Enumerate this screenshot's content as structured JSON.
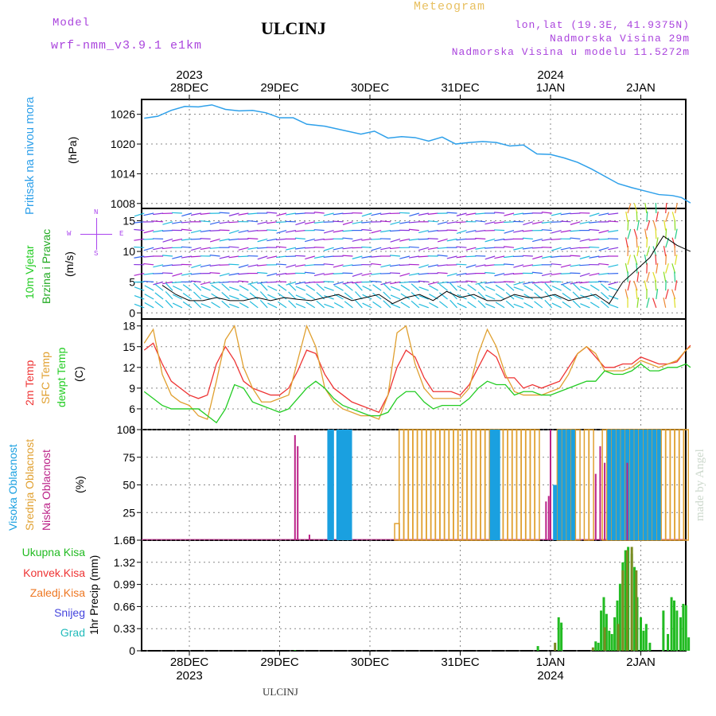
{
  "header": {
    "model_label": "Model",
    "model_name": "wrf-nmm_v3.9.1 e1km",
    "location": "ULCINJ",
    "product": "Meteogram",
    "coords": "lon,lat (19.3E, 41.9375N)",
    "elevation": "Nadmorska Visina 29m",
    "model_elevation": "Nadmorska Visina u modelu 11.5272m",
    "credit": "made by Angel",
    "footer_location": "ULCINJ"
  },
  "time_axis": {
    "top_years": [
      {
        "day_index": 0,
        "label": "2023"
      },
      {
        "day_index": 4,
        "label": "2024"
      }
    ],
    "top_days": [
      "28DEC",
      "29DEC",
      "30DEC",
      "31DEC",
      "1JAN",
      "2JAN"
    ],
    "bottom_days": [
      "28DEC",
      "29DEC",
      "30DEC",
      "31DEC",
      "1JAN",
      "2JAN"
    ],
    "bottom_years": [
      {
        "day_index": 0,
        "label": "2023"
      },
      {
        "day_index": 4,
        "label": "2024"
      }
    ]
  },
  "colors": {
    "pressure": "#2ea0ea",
    "wind_speed_label": "#22cc22",
    "wind_dir_label": "#22aa22",
    "wind_dir_legend": "#aa44ee",
    "temp2m": "#ee3333",
    "sfc_temp": "#e0a030",
    "dewpoint": "#22cc22",
    "cloud_high": "#1aa0e0",
    "cloud_mid": "#e0a030",
    "cloud_low": "#bb2288",
    "precip_total": "#22bb22",
    "precip_conv": "#ee3333",
    "precip_strat": "#ee7722",
    "precip_snow": "#4444dd",
    "precip_graupel": "#22bbbb"
  },
  "chart_data": [
    {
      "type": "line",
      "title": "",
      "labels": [
        "Pritisak na nivou mora",
        "(hPa)"
      ],
      "y_ticks": [
        "1026",
        "1020",
        "1014",
        "1008"
      ],
      "ylim": [
        1007,
        1029
      ],
      "x": [
        -0.5,
        -0.35,
        -0.2,
        -0.05,
        0.1,
        0.25,
        0.4,
        0.55,
        0.7,
        0.85,
        1.0,
        1.15,
        1.3,
        1.5,
        1.7,
        1.9,
        2.05,
        2.2,
        2.35,
        2.5,
        2.65,
        2.8,
        2.95,
        3.1,
        3.25,
        3.4,
        3.55,
        3.7,
        3.85,
        4.0,
        4.15,
        4.3,
        4.45,
        4.6,
        4.75,
        4.9,
        5.05,
        5.2,
        5.35,
        5.45,
        5.55
      ],
      "values": [
        1025.2,
        1025.6,
        1026.8,
        1027.6,
        1027.5,
        1027.9,
        1027.0,
        1026.7,
        1026.8,
        1026.3,
        1025.3,
        1025.3,
        1024.0,
        1023.6,
        1022.8,
        1022.0,
        1022.6,
        1021.2,
        1021.5,
        1021.3,
        1020.6,
        1021.4,
        1020.0,
        1020.3,
        1020.5,
        1020.3,
        1019.6,
        1019.8,
        1018.0,
        1017.9,
        1017.2,
        1016.3,
        1015.0,
        1013.5,
        1012.0,
        1011.2,
        1010.5,
        1009.8,
        1009.6,
        1009.2,
        1008.1
      ]
    },
    {
      "type": "line",
      "title": "",
      "labels": [
        "10m Vjetar",
        "Brzina i Pravac",
        "(m/s)"
      ],
      "direction_legend": [
        "N",
        "W",
        "E",
        "S"
      ],
      "y_ticks": [
        "15",
        "10",
        "5",
        "0"
      ],
      "ylim": [
        -1,
        17
      ],
      "series": [
        {
          "x": [
            -0.3,
            -0.15,
            0.0,
            0.15,
            0.3,
            0.45,
            0.6,
            0.75,
            0.9,
            1.05,
            1.2,
            1.35,
            1.5,
            1.65,
            1.8,
            1.95,
            2.1,
            2.25,
            2.4,
            2.55,
            2.7,
            2.85,
            3.0,
            3.15,
            3.3,
            3.45,
            3.6,
            3.75,
            3.9,
            4.05,
            4.2,
            4.35,
            4.5,
            4.65,
            4.8,
            4.95,
            5.1,
            5.25,
            5.4,
            5.55
          ],
          "values": [
            4.5,
            3.0,
            2.0,
            2.0,
            2.5,
            2.0,
            2.0,
            2.5,
            2.0,
            2.5,
            2.2,
            2.0,
            2.5,
            3.0,
            2.0,
            2.5,
            3.0,
            1.5,
            2.5,
            3.0,
            2.0,
            3.5,
            2.5,
            3.0,
            2.0,
            2.0,
            3.0,
            2.5,
            2.5,
            3.0,
            2.0,
            2.5,
            3.0,
            1.5,
            5.0,
            7.0,
            9.0,
            12.5,
            11.0,
            10.0
          ]
        }
      ]
    },
    {
      "type": "line",
      "title": "",
      "labels": [
        "2m Temp",
        "SFC Temp",
        "dewpt Temp",
        "(C)"
      ],
      "y_ticks": [
        "18",
        "15",
        "12",
        "9",
        "6",
        "3"
      ],
      "ylim": [
        3,
        19
      ],
      "x": [
        -0.5,
        -0.4,
        -0.3,
        -0.2,
        -0.1,
        0.0,
        0.1,
        0.2,
        0.3,
        0.4,
        0.5,
        0.6,
        0.7,
        0.8,
        0.9,
        1.0,
        1.1,
        1.2,
        1.3,
        1.4,
        1.5,
        1.6,
        1.7,
        1.8,
        1.9,
        2.0,
        2.1,
        2.2,
        2.3,
        2.4,
        2.5,
        2.6,
        2.7,
        2.8,
        2.9,
        3.0,
        3.1,
        3.2,
        3.3,
        3.4,
        3.5,
        3.6,
        3.7,
        3.8,
        3.9,
        4.0,
        4.1,
        4.2,
        4.3,
        4.4,
        4.5,
        4.6,
        4.7,
        4.8,
        4.9,
        5.0,
        5.1,
        5.2,
        5.3,
        5.4,
        5.5,
        5.55
      ],
      "series": [
        {
          "name": "2m Temp",
          "values": [
            14.5,
            15.5,
            12.5,
            10.0,
            9.0,
            8.0,
            7.5,
            8.0,
            12.5,
            15.0,
            13.0,
            10.0,
            9.0,
            8.5,
            8.0,
            8.0,
            9.0,
            11.5,
            14.5,
            14.0,
            11.0,
            9.0,
            8.0,
            7.0,
            6.5,
            6.0,
            5.5,
            8.0,
            12.0,
            14.5,
            13.5,
            10.5,
            8.5,
            8.5,
            8.5,
            8.0,
            9.5,
            12.0,
            14.5,
            13.5,
            10.5,
            10.5,
            9.0,
            9.5,
            9.0,
            9.5,
            10.0,
            12.0,
            14.0,
            15.0,
            13.5,
            12.0,
            12.0,
            12.5,
            12.5,
            13.5,
            13.0,
            12.5,
            12.5,
            12.8,
            14.5,
            15.2
          ]
        },
        {
          "name": "SFC Temp",
          "values": [
            15.5,
            17.5,
            11.0,
            8.0,
            7.0,
            6.5,
            5.0,
            4.5,
            10.0,
            16.0,
            18.0,
            12.0,
            9.0,
            7.0,
            7.0,
            7.5,
            8.0,
            13.0,
            18.0,
            15.0,
            9.0,
            7.0,
            6.0,
            5.5,
            5.0,
            5.0,
            4.5,
            8.0,
            17.0,
            18.0,
            12.5,
            9.0,
            7.5,
            7.5,
            7.5,
            7.5,
            9.0,
            14.0,
            17.5,
            15.0,
            11.0,
            8.5,
            8.0,
            8.0,
            8.0,
            8.5,
            9.0,
            11.0,
            14.0,
            15.0,
            14.0,
            11.5,
            11.5,
            11.5,
            12.0,
            13.0,
            12.5,
            12.0,
            12.5,
            13.0,
            14.5,
            15.0
          ]
        },
        {
          "name": "dewpt Temp",
          "values": [
            8.5,
            7.5,
            6.5,
            6.0,
            6.0,
            6.0,
            6.0,
            5.0,
            4.0,
            6.0,
            9.5,
            9.0,
            7.0,
            6.5,
            6.0,
            5.5,
            6.0,
            7.5,
            9.0,
            10.0,
            9.0,
            7.5,
            6.5,
            6.0,
            5.5,
            5.0,
            5.0,
            5.5,
            7.5,
            8.5,
            8.5,
            7.0,
            6.0,
            6.5,
            6.5,
            6.5,
            7.5,
            9.0,
            10.0,
            9.5,
            9.5,
            8.0,
            8.5,
            8.5,
            8.0,
            8.0,
            8.5,
            9.0,
            9.5,
            10.0,
            10.0,
            11.5,
            11.0,
            11.0,
            11.5,
            12.5,
            11.5,
            11.5,
            12.0,
            12.0,
            12.5,
            12.0
          ]
        }
      ]
    },
    {
      "type": "bar",
      "title": "",
      "labels": [
        "Visoka Oblacnost",
        "Srednja Oblacnost",
        "Niska Oblacnost",
        "(%)"
      ],
      "y_ticks": [
        "100",
        "75",
        "50",
        "25",
        "0"
      ],
      "ylim": [
        0,
        100
      ],
      "series": [
        {
          "name": "Visoka Oblacnost",
          "x": [
            1.55,
            1.58,
            1.65,
            1.68,
            1.72,
            1.75,
            1.78,
            3.35,
            3.38,
            3.42,
            4.05,
            4.1,
            4.15,
            4.2,
            4.25,
            4.65,
            4.7,
            4.75,
            4.8,
            4.85,
            4.9,
            4.95,
            5.0,
            5.05,
            5.1,
            5.15,
            5.2
          ],
          "values": [
            100,
            100,
            100,
            100,
            100,
            100,
            100,
            100,
            100,
            100,
            50,
            100,
            100,
            100,
            100,
            100,
            100,
            100,
            100,
            100,
            100,
            100,
            100,
            100,
            100,
            100,
            100
          ]
        },
        {
          "name": "Srednja Oblacnost",
          "x": [
            2.3,
            2.35,
            2.4,
            2.45,
            2.5,
            2.55,
            2.6,
            2.65,
            2.7,
            2.75,
            2.8,
            2.85,
            2.9,
            2.95,
            3.0,
            3.05,
            3.1,
            3.15,
            3.2,
            3.25,
            3.3,
            3.35,
            3.4,
            3.45,
            3.5,
            3.55,
            3.6,
            3.65,
            3.7,
            3.75,
            3.8,
            3.85,
            4.1,
            4.15,
            4.2,
            4.25,
            4.3,
            4.4,
            4.45,
            4.6,
            4.65,
            4.7,
            4.75,
            4.8,
            4.85,
            4.9,
            4.95,
            5.0,
            5.05,
            5.1,
            5.15,
            5.2,
            5.25,
            5.3,
            5.35,
            5.4,
            5.45,
            5.5
          ],
          "values": [
            15,
            100,
            100,
            100,
            100,
            100,
            100,
            100,
            100,
            100,
            100,
            100,
            100,
            100,
            100,
            100,
            100,
            100,
            100,
            100,
            100,
            100,
            100,
            100,
            100,
            100,
            100,
            100,
            100,
            100,
            100,
            100,
            100,
            100,
            100,
            100,
            100,
            100,
            100,
            100,
            100,
            100,
            100,
            100,
            100,
            100,
            100,
            100,
            100,
            100,
            100,
            100,
            100,
            100,
            100,
            100,
            100,
            100
          ]
        },
        {
          "name": "Niska Oblacnost",
          "x": [
            1.17,
            1.2,
            1.33,
            3.95,
            3.98,
            4.0,
            4.5,
            4.55,
            4.6,
            4.85
          ],
          "values": [
            95,
            85,
            5,
            35,
            40,
            100,
            60,
            85,
            70,
            70
          ]
        }
      ]
    },
    {
      "type": "bar",
      "title": "",
      "labels": [
        "Ukupna Kisa",
        "Konvek.Kisa",
        "Zaledj.Kisa",
        "Snijeg",
        "Grad",
        "1hr Precip (mm)"
      ],
      "y_ticks": [
        "1.65",
        "1.32",
        "0.99",
        "0.66",
        "0.33",
        "0"
      ],
      "ylim": [
        0,
        1.65
      ],
      "series": [
        {
          "name": "Ukupna Kisa",
          "x": [
            1.17,
            3.86,
            4.09,
            4.12,
            4.5,
            4.53,
            4.56,
            4.59,
            4.62,
            4.65,
            4.68,
            4.71,
            4.74,
            4.77,
            4.8,
            4.83,
            4.86,
            4.9,
            4.93,
            4.96,
            5.0,
            5.03,
            5.06,
            5.1,
            5.25,
            5.3,
            5.34,
            5.37,
            5.4,
            5.44,
            5.47,
            5.5,
            5.53
          ],
          "values": [
            0.01,
            0.07,
            0.5,
            0.42,
            0.14,
            0.12,
            0.6,
            0.8,
            0.55,
            0.3,
            0.25,
            0.5,
            0.75,
            1.0,
            1.32,
            1.5,
            1.55,
            1.45,
            1.25,
            0.8,
            0.5,
            0.3,
            0.4,
            0.12,
            0.6,
            0.25,
            0.8,
            0.75,
            0.6,
            0.5,
            0.7,
            0.68,
            0.2
          ]
        },
        {
          "name": "Konvek.Kisa",
          "x": [
            4.05,
            4.47,
            4.6,
            4.75,
            4.8,
            4.85,
            4.9,
            4.95
          ],
          "values": [
            0.12,
            0.05,
            0.35,
            0.4,
            1.2,
            1.5,
            1.55,
            1.2
          ]
        }
      ]
    }
  ]
}
